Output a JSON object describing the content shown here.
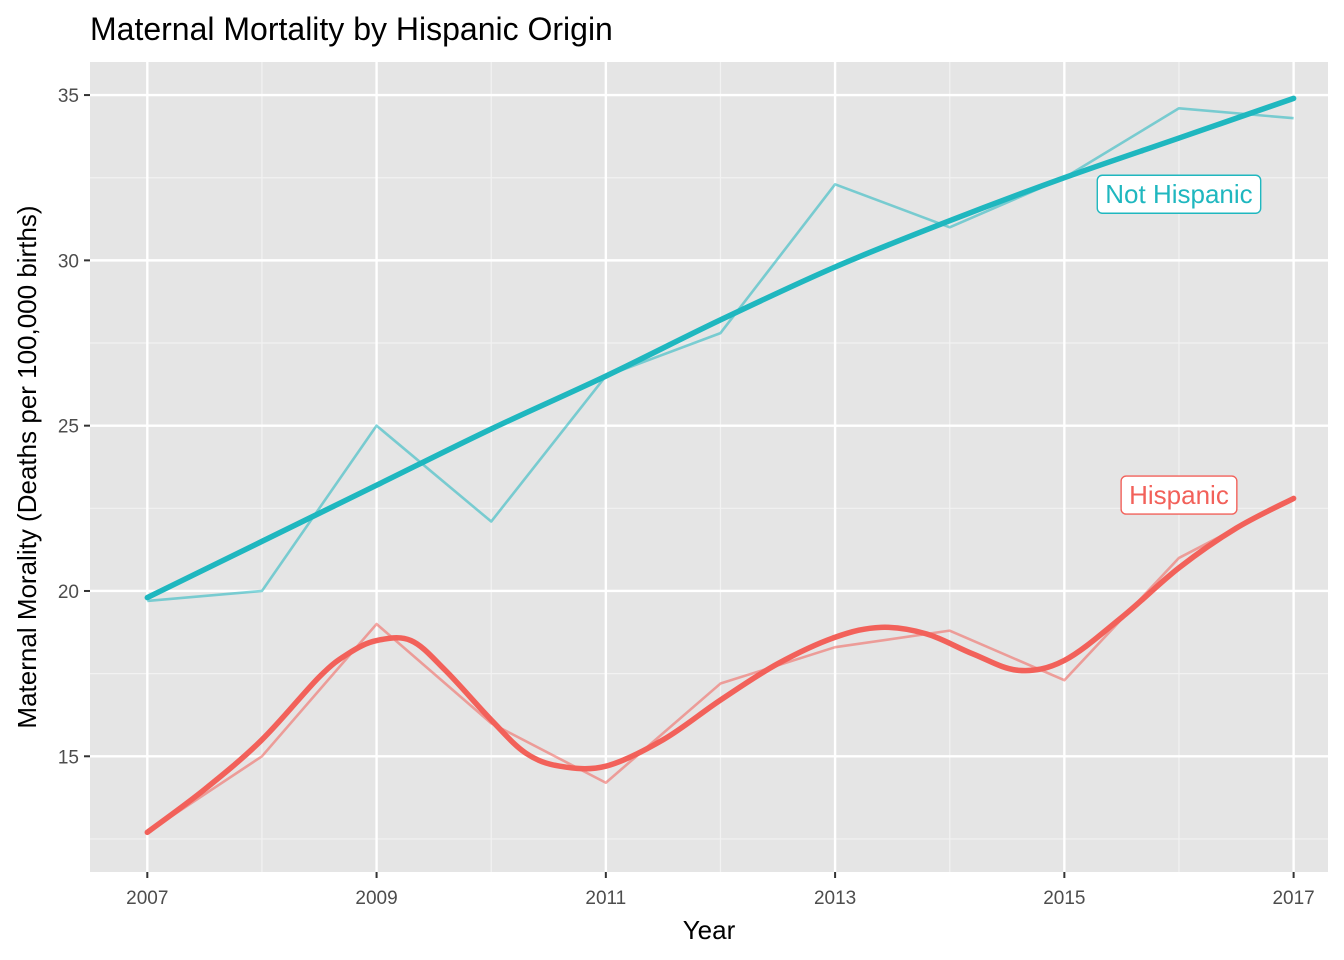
{
  "chart_data": {
    "type": "line",
    "title": "Maternal Mortality by Hispanic Origin",
    "xlabel": "Year",
    "ylabel": "Maternal Morality (Deaths per 100,000 births)",
    "xlim": [
      2006.5,
      2017.3
    ],
    "ylim": [
      11.5,
      36
    ],
    "x_ticks": [
      2007,
      2009,
      2011,
      2013,
      2015,
      2017
    ],
    "y_ticks": [
      15,
      20,
      25,
      30,
      35
    ],
    "grid": true,
    "legend": "none",
    "x": [
      2007,
      2008,
      2009,
      2010,
      2011,
      2012,
      2013,
      2014,
      2015,
      2016,
      2017
    ],
    "series": [
      {
        "name": "Not Hispanic",
        "color": "#1fb7bf",
        "values": [
          19.7,
          20.0,
          25.0,
          22.1,
          26.5,
          27.8,
          32.3,
          31.0,
          32.5,
          34.6,
          34.3
        ],
        "trend": {
          "x": [
            2007,
            2008,
            2009,
            2010,
            2011,
            2012,
            2013,
            2014,
            2015,
            2016,
            2017
          ],
          "values": [
            19.8,
            21.5,
            23.2,
            24.9,
            26.5,
            28.2,
            29.8,
            31.2,
            32.5,
            33.7,
            34.9
          ]
        },
        "label_at": [
          2016.0,
          32.0
        ]
      },
      {
        "name": "Hispanic",
        "color": "#f2615a",
        "values": [
          12.7,
          15.0,
          19.0,
          16.0,
          14.2,
          17.2,
          18.3,
          18.8,
          17.3,
          21.0,
          22.8
        ],
        "trend": {
          "x": [
            2007,
            2007.5,
            2008,
            2008.5,
            2008.75,
            2009,
            2009.3,
            2009.6,
            2010,
            2010.3,
            2010.6,
            2011,
            2011.5,
            2012,
            2012.5,
            2013,
            2013.4,
            2013.8,
            2014.2,
            2014.6,
            2015,
            2015.5,
            2016,
            2016.5,
            2017
          ],
          "values": [
            12.7,
            14.0,
            15.5,
            17.4,
            18.1,
            18.5,
            18.5,
            17.6,
            16.1,
            15.1,
            14.7,
            14.7,
            15.5,
            16.7,
            17.8,
            18.6,
            18.9,
            18.7,
            18.1,
            17.6,
            17.9,
            19.2,
            20.7,
            21.9,
            22.8
          ]
        },
        "label_at": [
          2016.0,
          22.9
        ]
      }
    ]
  }
}
